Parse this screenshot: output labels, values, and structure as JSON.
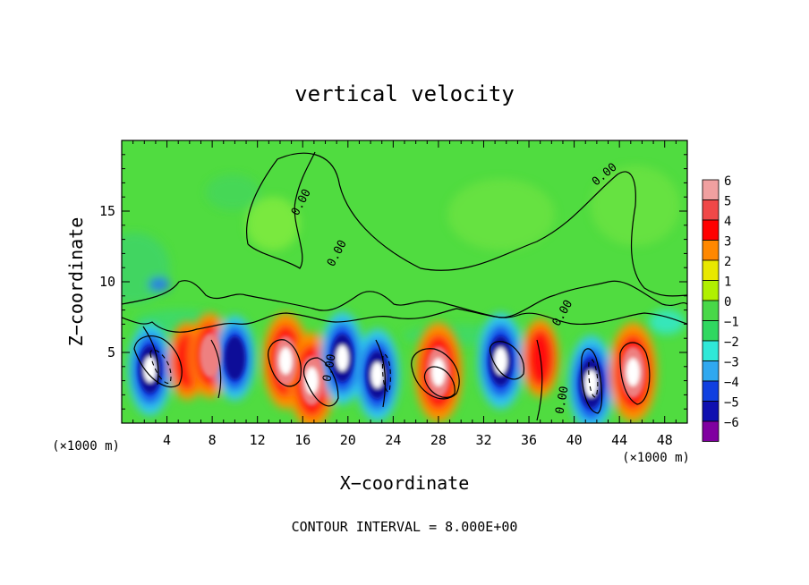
{
  "chart_data": {
    "type": "heatmap",
    "title": "vertical velocity",
    "xlabel": "X−coordinate",
    "ylabel": "Z−coordinate",
    "x_unit": "(×1000 m)",
    "z_unit": "(×1000 m)",
    "xlim": [
      0,
      50
    ],
    "ylim": [
      0,
      20
    ],
    "x_ticks": [
      4,
      8,
      12,
      16,
      20,
      24,
      28,
      32,
      36,
      40,
      44,
      48
    ],
    "y_ticks": [
      5,
      10,
      15
    ],
    "colorbar": {
      "levels": [
        6,
        5,
        4,
        3,
        2,
        1,
        0,
        -1,
        -2,
        -3,
        -4,
        -5,
        -6
      ],
      "labels": [
        "6",
        "5",
        "4",
        "3",
        "2",
        "1",
        "0",
        "−1",
        "−2",
        "−3",
        "−4",
        "−5",
        "−6"
      ],
      "colors": [
        "#f0a0a0",
        "#f04848",
        "#ff0000",
        "#ff8800",
        "#e8e800",
        "#b0f000",
        "#48d848",
        "#30d860",
        "#30e8d8",
        "#30a8f0",
        "#1040e0",
        "#1010b0",
        "#8000a0"
      ]
    },
    "contour_labels": [
      "0.00",
      "0.00",
      "0.00",
      "0.00",
      "0.00",
      "0.00"
    ],
    "cells": [
      {
        "x": 2.5,
        "z": 3.8,
        "sign": -1,
        "amp": 8
      },
      {
        "x": 5.8,
        "z": 4.4,
        "sign": 1,
        "amp": 4
      },
      {
        "x": 7.8,
        "z": 4.8,
        "sign": 1,
        "amp": 6
      },
      {
        "x": 10.0,
        "z": 4.6,
        "sign": -1,
        "amp": 6
      },
      {
        "x": 14.5,
        "z": 4.4,
        "sign": 1,
        "amp": 9
      },
      {
        "x": 16.8,
        "z": 3.0,
        "sign": 1,
        "amp": 9
      },
      {
        "x": 19.5,
        "z": 4.6,
        "sign": -1,
        "amp": 8
      },
      {
        "x": 22.6,
        "z": 3.4,
        "sign": -1,
        "amp": 8
      },
      {
        "x": 28.0,
        "z": 3.6,
        "sign": 1,
        "amp": 10
      },
      {
        "x": 33.5,
        "z": 4.4,
        "sign": -1,
        "amp": 9
      },
      {
        "x": 37.0,
        "z": 4.6,
        "sign": 1,
        "amp": 4
      },
      {
        "x": 41.5,
        "z": 2.8,
        "sign": -1,
        "amp": 9
      },
      {
        "x": 45.2,
        "z": 3.6,
        "sign": 1,
        "amp": 10
      }
    ],
    "contour_interval_text": "CONTOUR INTERVAL = 8.000E+00"
  }
}
